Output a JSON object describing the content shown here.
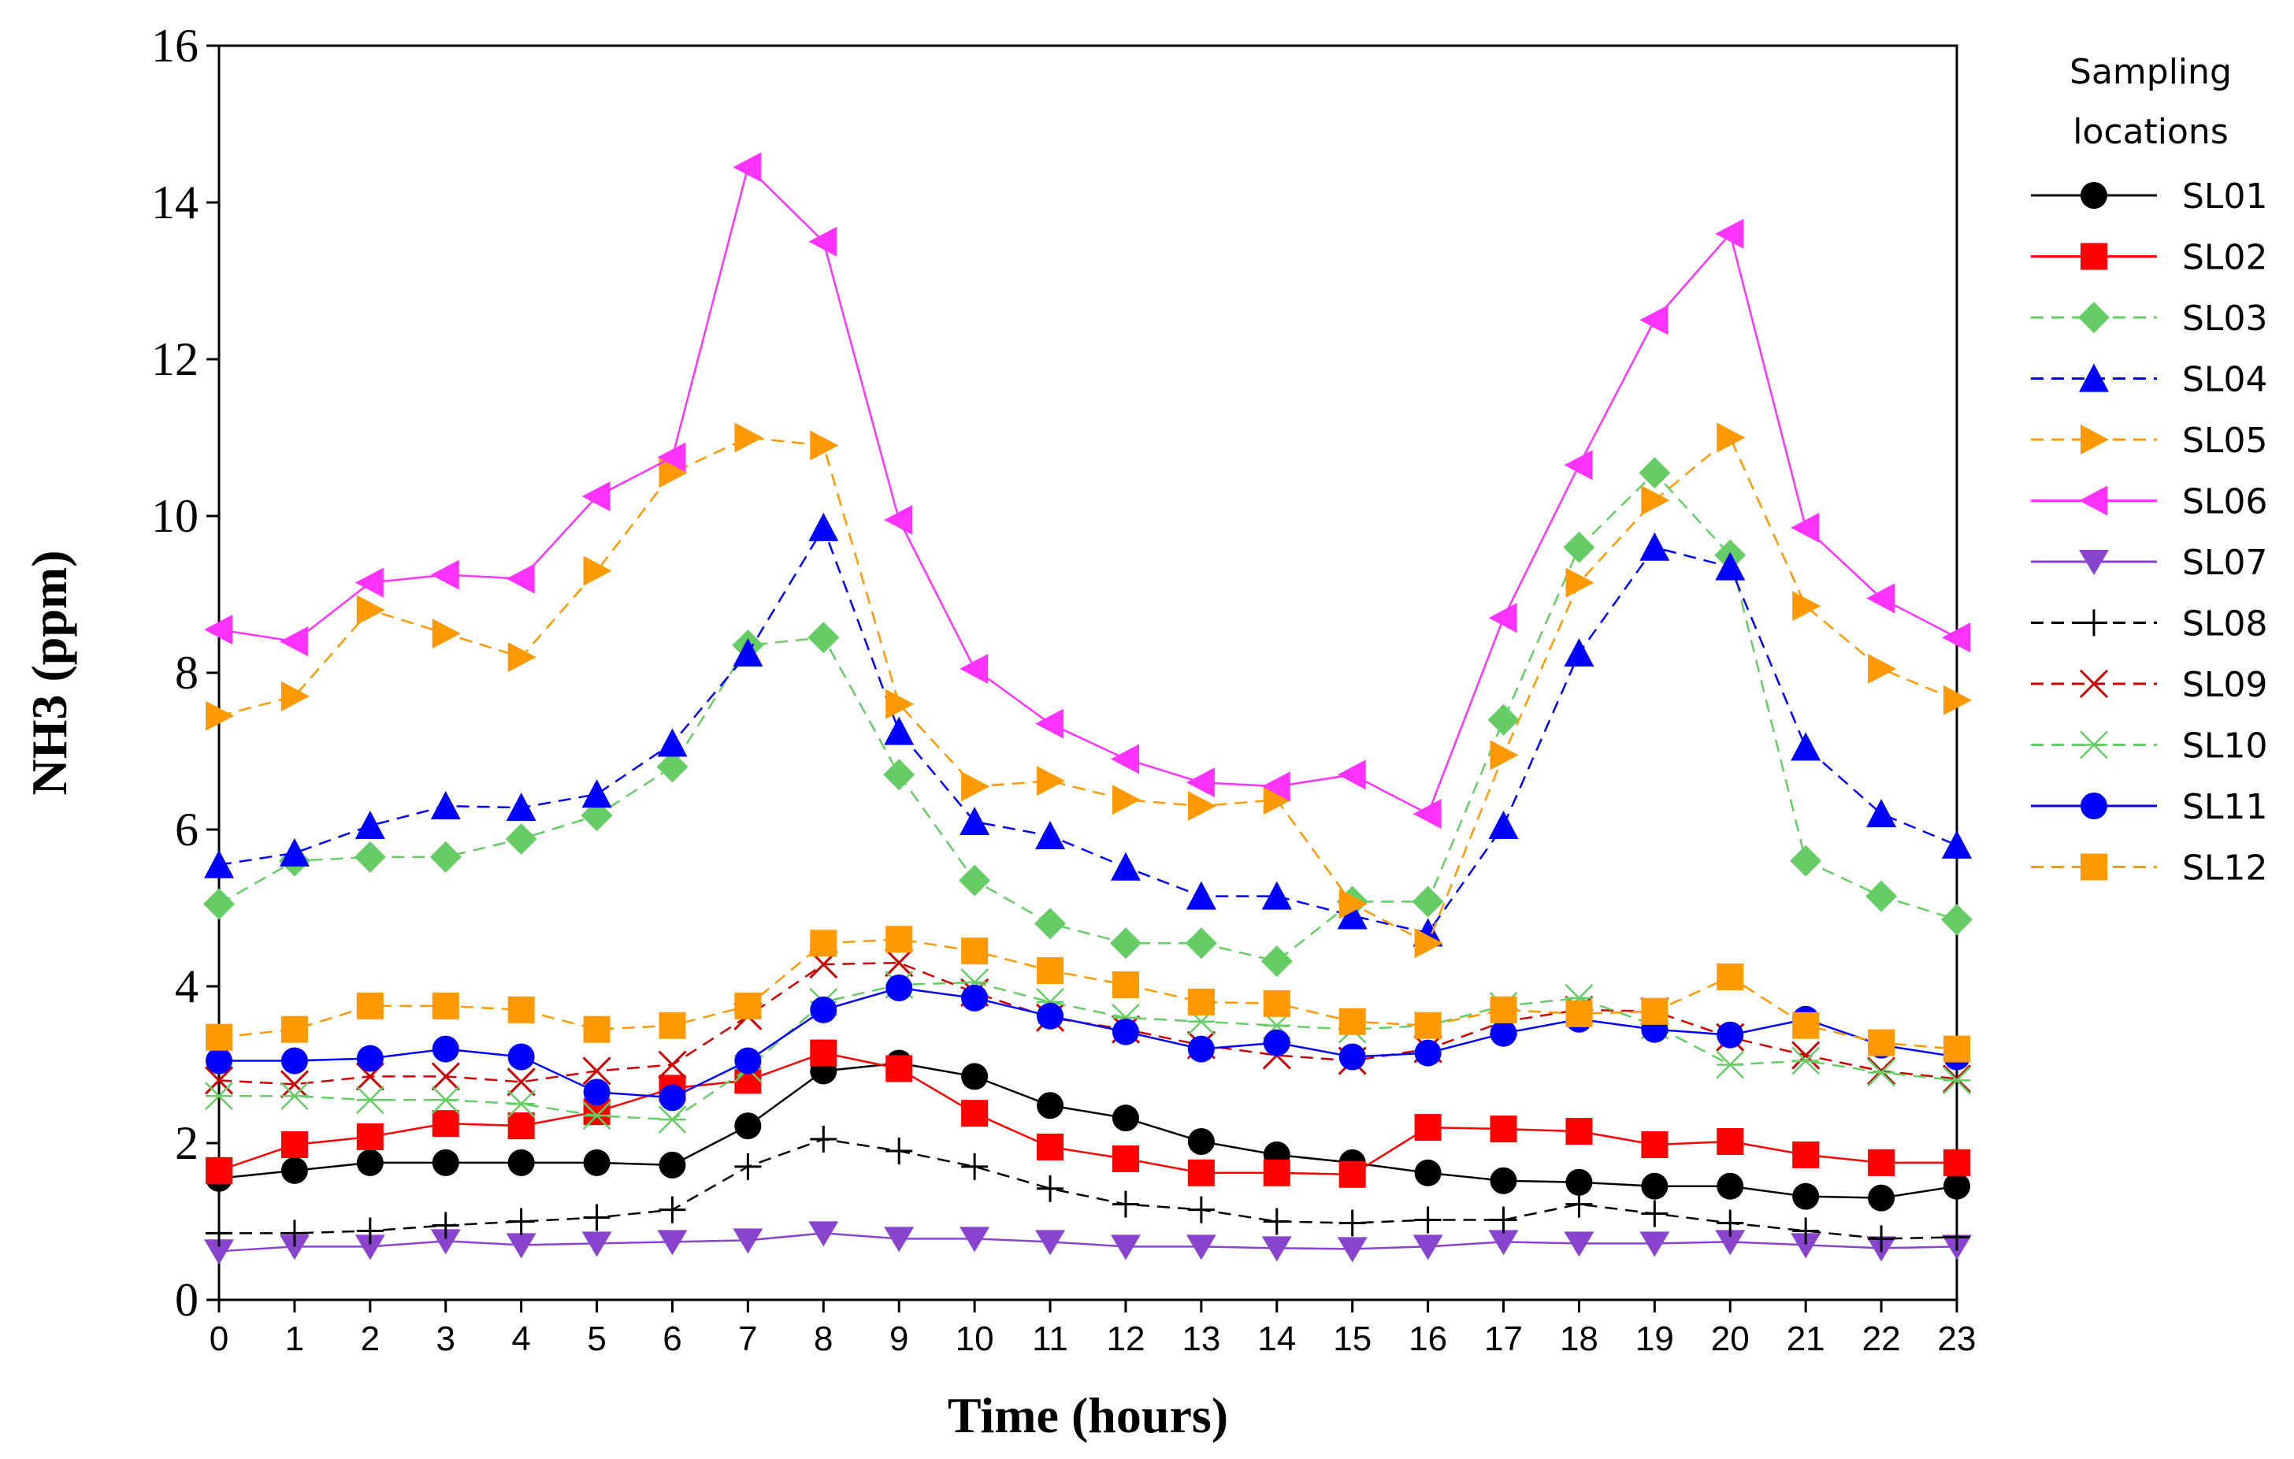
{
  "chart_data": {
    "type": "line",
    "title": "",
    "xlabel": "Time (hours)",
    "ylabel": "NH3 (ppm)",
    "xlim": [
      0,
      23
    ],
    "ylim": [
      0,
      16
    ],
    "x": [
      0,
      1,
      2,
      3,
      4,
      5,
      6,
      7,
      8,
      9,
      10,
      11,
      12,
      13,
      14,
      15,
      16,
      17,
      18,
      19,
      20,
      21,
      22,
      23
    ],
    "x_tick_labels": [
      "0",
      "1",
      "2",
      "3",
      "4",
      "5",
      "6",
      "7",
      "8",
      "9",
      "10",
      "11",
      "12",
      "13",
      "14",
      "15",
      "16",
      "17",
      "18",
      "19",
      "20",
      "21",
      "22",
      "23"
    ],
    "y_ticks": [
      0,
      2,
      4,
      6,
      8,
      10,
      12,
      14,
      16
    ],
    "y_tick_labels": [
      "0",
      "2",
      "4",
      "6",
      "8",
      "10",
      "12",
      "14",
      "16"
    ],
    "legend_title": [
      "Sampling",
      "locations"
    ],
    "legend_position": "right",
    "series": [
      {
        "name": "SL01",
        "color": "#000000",
        "marker": "circle",
        "dash": "solid",
        "values": [
          1.55,
          1.65,
          1.75,
          1.75,
          1.75,
          1.75,
          1.72,
          2.22,
          2.92,
          3.02,
          2.85,
          2.48,
          2.32,
          2.02,
          1.85,
          1.75,
          1.62,
          1.52,
          1.5,
          1.45,
          1.45,
          1.32,
          1.3,
          1.45
        ]
      },
      {
        "name": "SL02",
        "color": "#ff0000",
        "marker": "square",
        "dash": "solid",
        "values": [
          1.65,
          1.98,
          2.08,
          2.25,
          2.22,
          2.4,
          2.7,
          2.8,
          3.15,
          2.95,
          2.38,
          1.95,
          1.8,
          1.62,
          1.62,
          1.6,
          2.2,
          2.18,
          2.15,
          1.98,
          2.02,
          1.85,
          1.75,
          1.75
        ]
      },
      {
        "name": "SL03",
        "color": "#66cc66",
        "marker": "diamond",
        "dash": "dashed",
        "values": [
          5.05,
          5.6,
          5.65,
          5.65,
          5.88,
          6.18,
          6.8,
          8.35,
          8.45,
          6.7,
          5.35,
          4.8,
          4.55,
          4.55,
          4.32,
          5.08,
          5.08,
          7.4,
          9.6,
          10.55,
          9.5,
          5.6,
          5.15,
          4.85
        ]
      },
      {
        "name": "SL04",
        "color": "#0000ff",
        "marker": "triangle-up",
        "dash": "dashed",
        "values": [
          5.55,
          5.7,
          6.05,
          6.3,
          6.28,
          6.45,
          7.1,
          8.25,
          9.85,
          7.25,
          6.1,
          5.92,
          5.52,
          5.15,
          5.15,
          4.9,
          4.68,
          6.05,
          8.25,
          9.6,
          9.35,
          7.05,
          6.2,
          5.8
        ]
      },
      {
        "name": "SL05",
        "color": "#ff9900",
        "marker": "triangle-right",
        "dash": "dashed",
        "values": [
          7.45,
          7.7,
          8.8,
          8.5,
          8.2,
          9.3,
          10.55,
          11.0,
          10.9,
          7.6,
          6.55,
          6.62,
          6.38,
          6.3,
          6.38,
          5.05,
          4.55,
          6.95,
          9.15,
          10.2,
          11.0,
          8.85,
          8.05,
          7.65
        ]
      },
      {
        "name": "SL06",
        "color": "#ff33ff",
        "marker": "triangle-left",
        "dash": "solid",
        "values": [
          8.55,
          8.4,
          9.15,
          9.25,
          9.2,
          10.25,
          10.75,
          14.45,
          13.5,
          9.95,
          8.05,
          7.35,
          6.9,
          6.6,
          6.55,
          6.7,
          6.2,
          8.7,
          10.65,
          12.5,
          13.6,
          9.85,
          8.95,
          8.45
        ]
      },
      {
        "name": "SL07",
        "color": "#8844cc",
        "marker": "triangle-down",
        "dash": "solid",
        "values": [
          0.62,
          0.68,
          0.68,
          0.75,
          0.7,
          0.72,
          0.74,
          0.76,
          0.85,
          0.78,
          0.78,
          0.74,
          0.68,
          0.68,
          0.66,
          0.65,
          0.68,
          0.74,
          0.72,
          0.72,
          0.74,
          0.7,
          0.66,
          0.68
        ]
      },
      {
        "name": "SL08",
        "color": "#000000",
        "marker": "plus",
        "dash": "dashed",
        "values": [
          0.85,
          0.85,
          0.88,
          0.95,
          1.0,
          1.05,
          1.15,
          1.7,
          2.05,
          1.9,
          1.7,
          1.42,
          1.22,
          1.15,
          1.0,
          0.98,
          1.02,
          1.02,
          1.22,
          1.1,
          0.98,
          0.88,
          0.78,
          0.8
        ]
      },
      {
        "name": "SL09",
        "color": "#cc0000",
        "marker": "x",
        "dash": "dashed",
        "values": [
          2.8,
          2.75,
          2.85,
          2.85,
          2.78,
          2.92,
          3.0,
          3.62,
          4.28,
          4.3,
          3.92,
          3.6,
          3.45,
          3.25,
          3.12,
          3.05,
          3.2,
          3.55,
          3.7,
          3.68,
          3.35,
          3.12,
          2.92,
          2.82
        ]
      },
      {
        "name": "SL10",
        "color": "#66cc66",
        "marker": "asterisk",
        "dash": "dashed",
        "values": [
          2.6,
          2.6,
          2.55,
          2.55,
          2.5,
          2.35,
          2.3,
          2.95,
          3.8,
          4.02,
          4.05,
          3.8,
          3.6,
          3.55,
          3.5,
          3.45,
          3.5,
          3.75,
          3.85,
          3.5,
          3.0,
          3.05,
          2.9,
          2.8
        ]
      },
      {
        "name": "SL11",
        "color": "#0000ff",
        "marker": "circle",
        "dash": "solid",
        "values": [
          3.05,
          3.05,
          3.08,
          3.2,
          3.1,
          2.65,
          2.58,
          3.05,
          3.7,
          3.98,
          3.85,
          3.62,
          3.42,
          3.2,
          3.28,
          3.1,
          3.15,
          3.4,
          3.58,
          3.45,
          3.38,
          3.58,
          3.25,
          3.1
        ]
      },
      {
        "name": "SL12",
        "color": "#ff9900",
        "marker": "square",
        "dash": "dashed",
        "values": [
          3.35,
          3.45,
          3.75,
          3.75,
          3.7,
          3.45,
          3.5,
          3.75,
          4.55,
          4.6,
          4.45,
          4.2,
          4.02,
          3.8,
          3.78,
          3.55,
          3.5,
          3.7,
          3.65,
          3.68,
          4.12,
          3.5,
          3.28,
          3.2
        ]
      }
    ]
  }
}
